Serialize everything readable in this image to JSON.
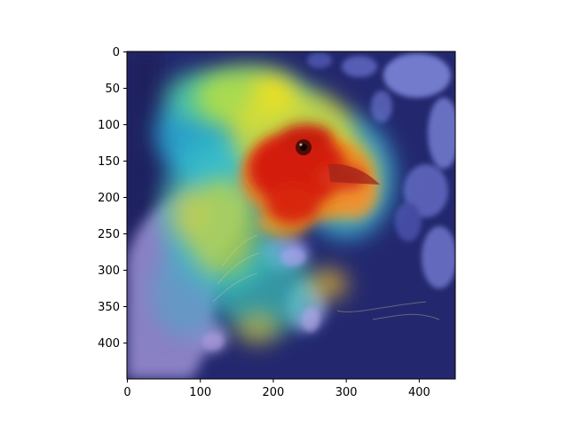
{
  "chart_data": {
    "type": "image",
    "image_shape": [
      450,
      450
    ],
    "xlim": [
      0,
      450
    ],
    "ylim": [
      450,
      0
    ],
    "y_inverted": true,
    "xticks": [
      0,
      100,
      200,
      300,
      400
    ],
    "yticks": [
      0,
      50,
      100,
      150,
      200,
      250,
      300,
      350,
      400
    ],
    "xtick_labels": [
      "0",
      "100",
      "200",
      "300",
      "400"
    ],
    "ytick_labels": [
      "0",
      "50",
      "100",
      "150",
      "200",
      "250",
      "300",
      "350",
      "400"
    ],
    "overlay": "saliency heatmap (jet colormap) over photograph of a bird held in a hand",
    "hotspot_center": [
      290,
      195
    ],
    "colors": {
      "background_dark": "#23286e",
      "hot": "#d41e0a",
      "warm": "#f0dc1e",
      "mid": "#28d2b4",
      "hand": "#8c82c8",
      "axis": "#000000"
    }
  }
}
